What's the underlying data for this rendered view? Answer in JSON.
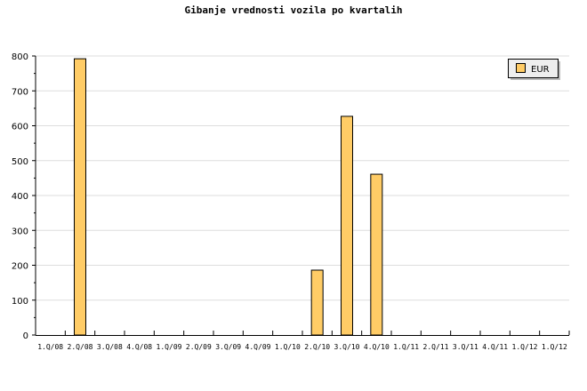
{
  "chart_data": {
    "type": "bar",
    "title": "Gibanje vrednosti vozila po kvartalih",
    "xlabel": "",
    "ylabel": "",
    "ylim": [
      0,
      800
    ],
    "yticks": [
      0,
      100,
      200,
      300,
      400,
      500,
      600,
      700,
      800
    ],
    "grid": true,
    "legend_position": "top-right",
    "categories": [
      "1.Q/08",
      "2.Q/08",
      "3.Q/08",
      "4.Q/08",
      "1.Q/09",
      "2.Q/09",
      "3.Q/09",
      "4.Q/09",
      "1.Q/10",
      "2.Q/10",
      "3.Q/10",
      "4.Q/10",
      "1.Q/11",
      "2.Q/11",
      "3.Q/11",
      "4.Q/11",
      "1.Q/12",
      "1.Q/12"
    ],
    "series": [
      {
        "name": "EUR",
        "color": "#ffcc66",
        "values": [
          0,
          792,
          0,
          0,
          0,
          0,
          0,
          0,
          0,
          186,
          627,
          461,
          0,
          0,
          0,
          0,
          0,
          0
        ]
      }
    ]
  }
}
